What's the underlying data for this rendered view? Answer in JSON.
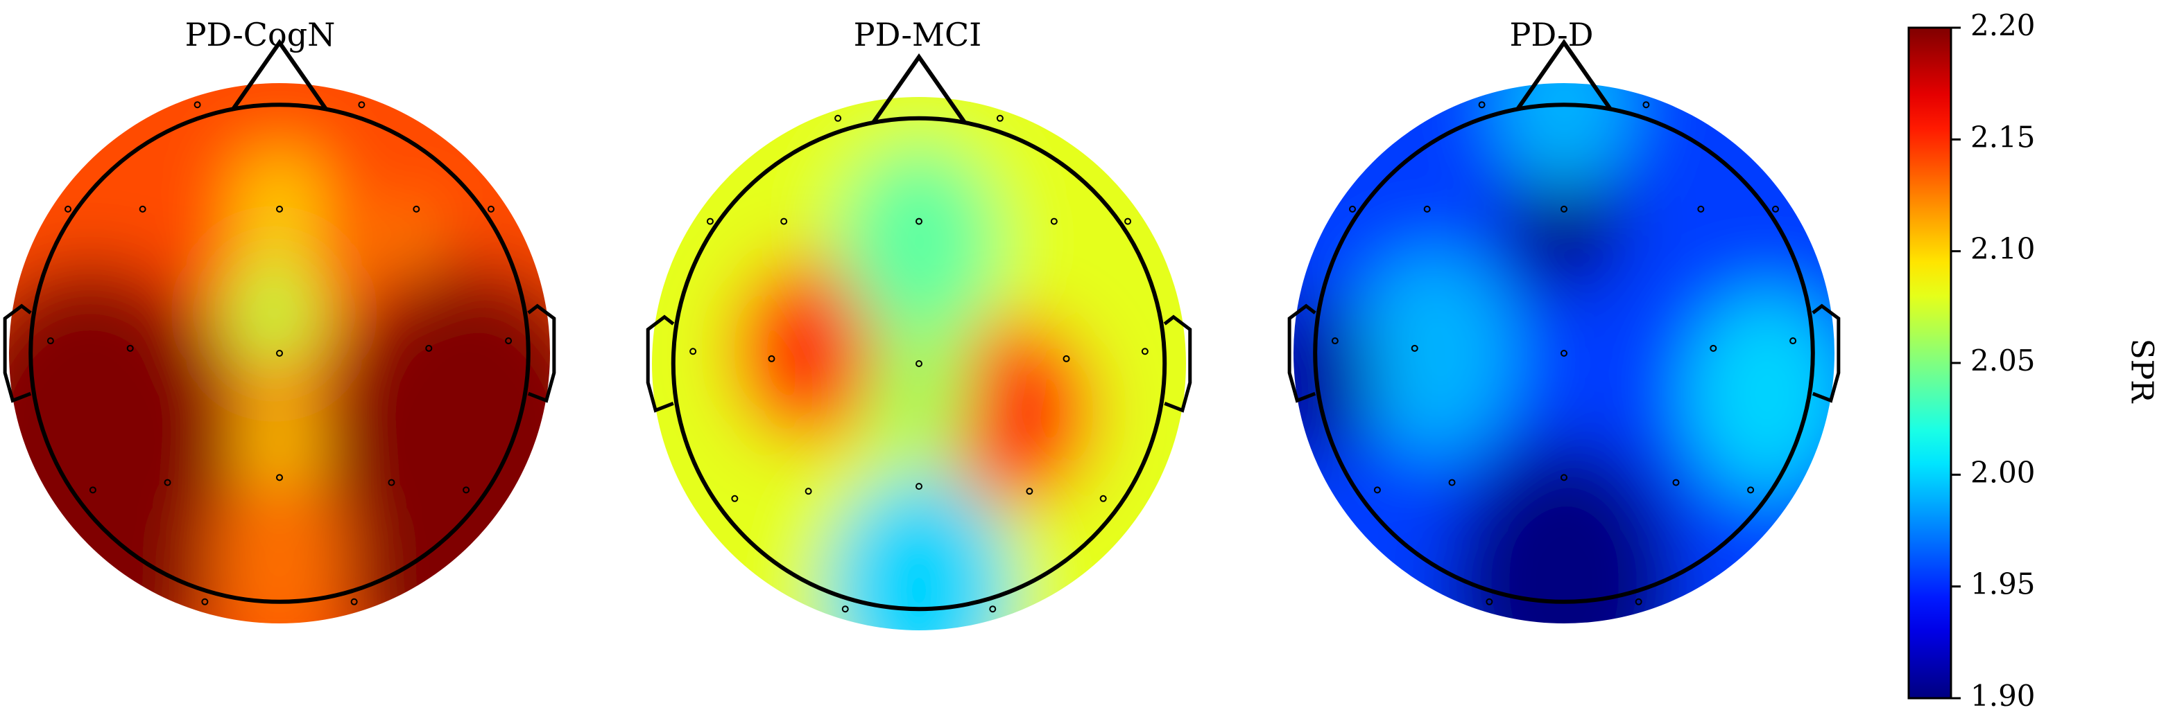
{
  "chart_data": {
    "type": "heatmap",
    "subtype": "EEG scalp topographic maps",
    "colormap": "jet",
    "value_range": [
      1.9,
      2.2
    ],
    "colorbar": {
      "label": "SPR",
      "ticks": [
        "2.20",
        "2.15",
        "2.10",
        "2.05",
        "2.00",
        "1.95",
        "1.90"
      ],
      "tick_values": [
        2.2,
        2.15,
        2.1,
        2.05,
        2.0,
        1.95,
        1.9
      ]
    },
    "panels": [
      {
        "title": "PD-CogN",
        "base_value": 2.14,
        "features": [
          {
            "region": "left temporal-occipital",
            "u": -0.7,
            "v": 0.35,
            "spread": 0.55,
            "value": 2.2
          },
          {
            "region": "right temporal-occipital",
            "u": 0.7,
            "v": 0.35,
            "spread": 0.55,
            "value": 2.2
          },
          {
            "region": "left lower",
            "u": -0.55,
            "v": 0.75,
            "spread": 0.35,
            "value": 2.2
          },
          {
            "region": "right lower",
            "u": 0.55,
            "v": 0.75,
            "spread": 0.35,
            "value": 2.2
          },
          {
            "region": "midline central",
            "u": -0.02,
            "v": -0.15,
            "spread": 0.18,
            "value": 2.07
          },
          {
            "region": "midline frontal",
            "u": 0.0,
            "v": -0.55,
            "spread": 0.16,
            "value": 2.1
          },
          {
            "region": "midline parietal",
            "u": 0.0,
            "v": 0.35,
            "spread": 0.14,
            "value": 2.1
          },
          {
            "region": "midline occipital",
            "u": 0.0,
            "v": 0.75,
            "spread": 0.25,
            "value": 2.13
          },
          {
            "region": "right frontal",
            "u": 0.45,
            "v": -0.42,
            "spread": 0.1,
            "value": 2.12
          }
        ]
      },
      {
        "title": "PD-MCI",
        "base_value": 2.08,
        "features": [
          {
            "region": "left central",
            "u": -0.42,
            "v": -0.05,
            "spread": 0.28,
            "value": 2.15
          },
          {
            "region": "right central",
            "u": 0.38,
            "v": 0.18,
            "spread": 0.28,
            "value": 2.15
          },
          {
            "region": "frontal midline",
            "u": 0.0,
            "v": -0.45,
            "spread": 0.3,
            "value": 2.04
          },
          {
            "region": "occipital midline",
            "u": 0.0,
            "v": 0.85,
            "spread": 0.35,
            "value": 2.0
          },
          {
            "region": "central midline",
            "u": 0.0,
            "v": 0.1,
            "spread": 0.2,
            "value": 2.06
          }
        ]
      },
      {
        "title": "PD-D",
        "base_value": 1.955,
        "features": [
          {
            "region": "frontal midline",
            "u": 0.0,
            "v": -0.5,
            "spread": 0.22,
            "value": 1.9
          },
          {
            "region": "occipital",
            "u": 0.0,
            "v": 0.85,
            "spread": 0.42,
            "value": 1.9
          },
          {
            "region": "left central",
            "u": -0.48,
            "v": 0.0,
            "spread": 0.3,
            "value": 1.99
          },
          {
            "region": "right temporal",
            "u": 0.75,
            "v": 0.15,
            "spread": 0.3,
            "value": 2.0
          },
          {
            "region": "frontal pole",
            "u": 0.0,
            "v": -0.92,
            "spread": 0.25,
            "value": 1.99
          },
          {
            "region": "left edge",
            "u": -0.95,
            "v": 0.1,
            "spread": 0.25,
            "value": 1.91
          }
        ]
      }
    ],
    "electrodes": [
      {
        "u": -0.33,
        "v": -1.0
      },
      {
        "u": 0.33,
        "v": -1.0
      },
      {
        "u": -0.85,
        "v": -0.58
      },
      {
        "u": -0.55,
        "v": -0.58
      },
      {
        "u": 0.0,
        "v": -0.58
      },
      {
        "u": 0.55,
        "v": -0.58
      },
      {
        "u": 0.85,
        "v": -0.58
      },
      {
        "u": -0.92,
        "v": -0.05
      },
      {
        "u": -0.6,
        "v": -0.02
      },
      {
        "u": 0.0,
        "v": 0.0
      },
      {
        "u": 0.6,
        "v": -0.02
      },
      {
        "u": 0.92,
        "v": -0.05
      },
      {
        "u": -0.75,
        "v": 0.55
      },
      {
        "u": -0.45,
        "v": 0.52
      },
      {
        "u": 0.0,
        "v": 0.5
      },
      {
        "u": 0.45,
        "v": 0.52
      },
      {
        "u": 0.75,
        "v": 0.55
      },
      {
        "u": -0.3,
        "v": 1.0
      },
      {
        "u": 0.3,
        "v": 1.0
      }
    ]
  }
}
